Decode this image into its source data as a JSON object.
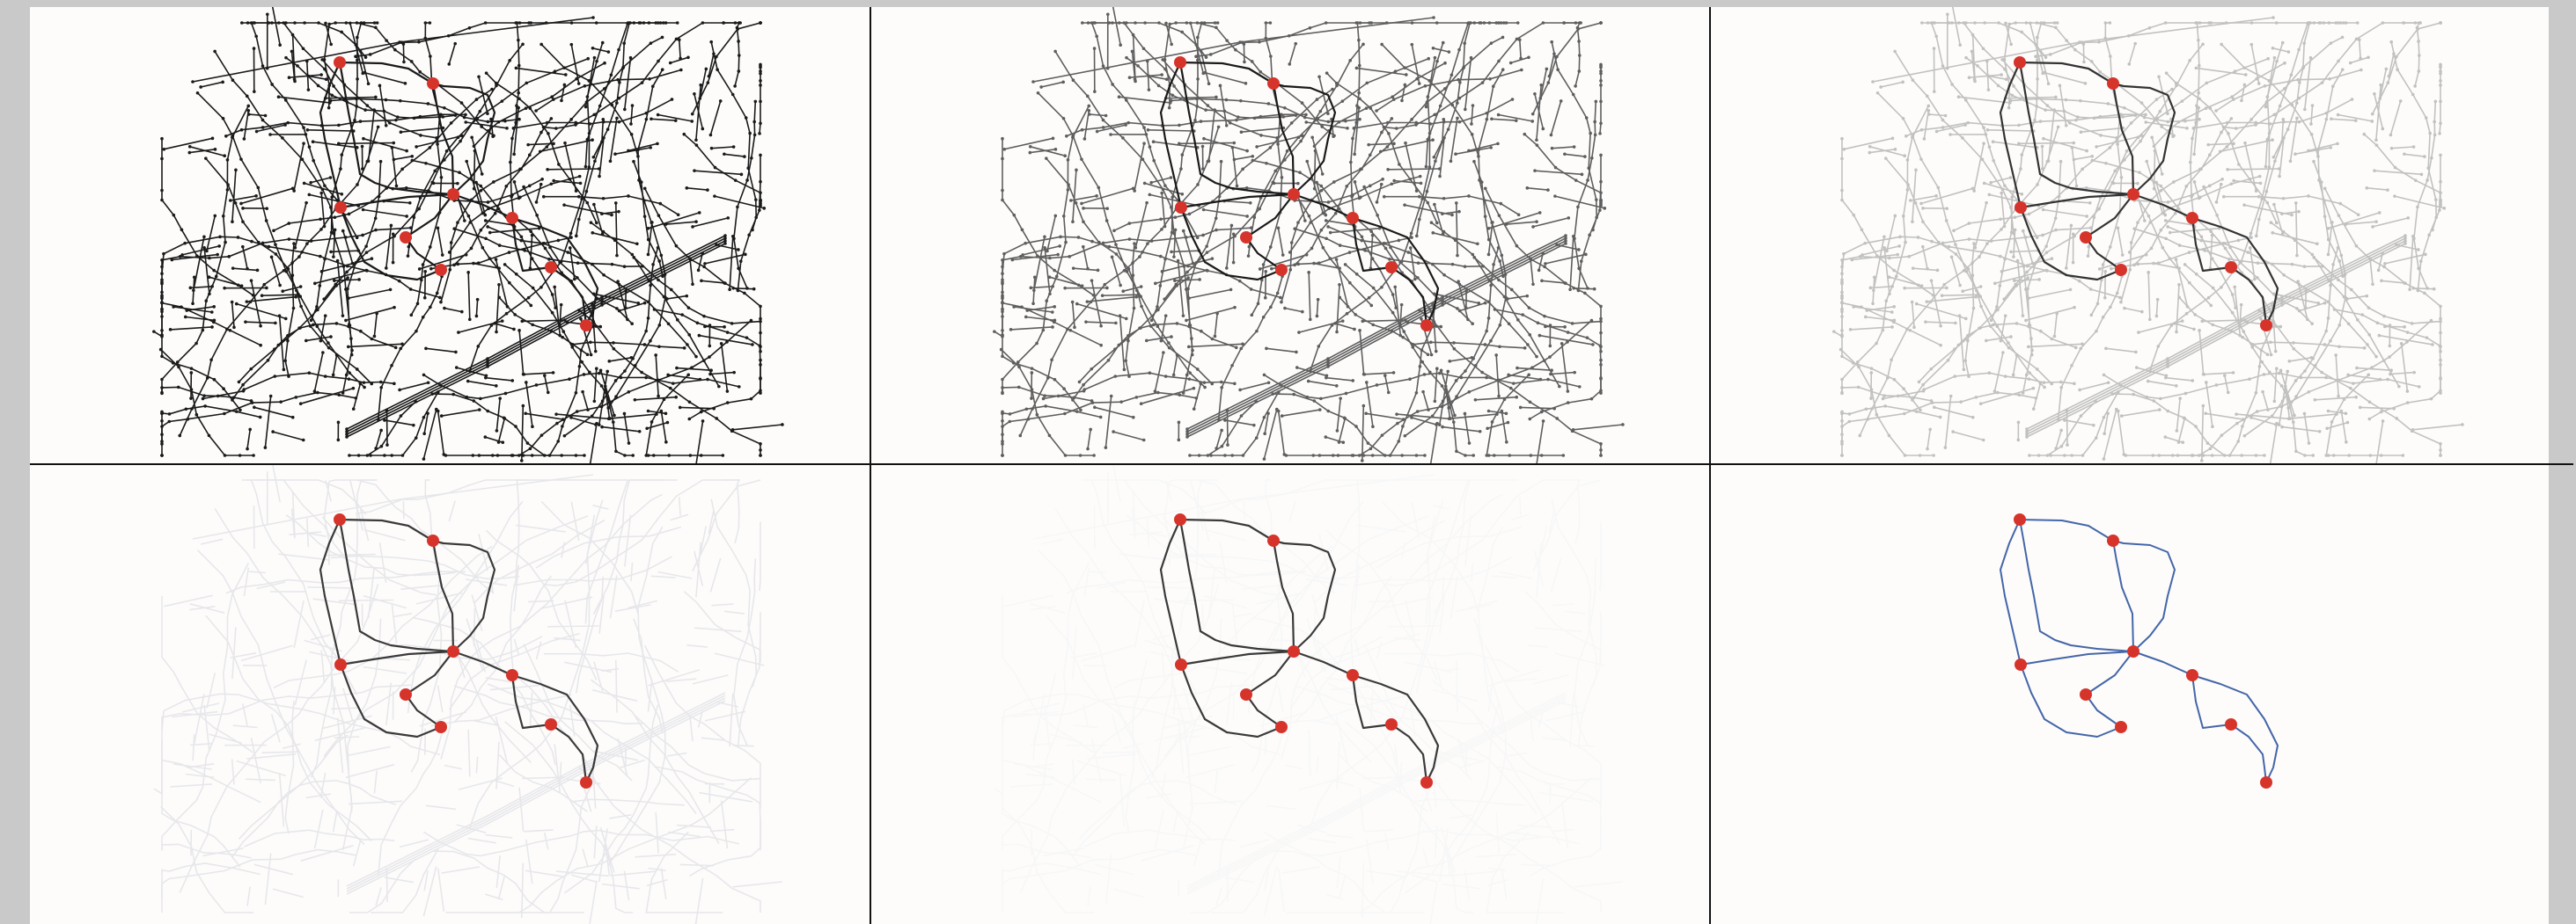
{
  "figure": {
    "layout": {
      "rows": 2,
      "cols": 3
    },
    "panels": [
      {
        "id": "p1",
        "network_opacity": 1.0,
        "halo_opacity": 0.0,
        "network_color": "#1a1a1a",
        "route_color": "#1a1a1a",
        "show_nodes": true
      },
      {
        "id": "p2",
        "network_opacity": 0.78,
        "halo_opacity": 0.0,
        "network_color": "#333333",
        "route_color": "#1a1a1a",
        "show_nodes": true
      },
      {
        "id": "p3",
        "network_opacity": 0.45,
        "halo_opacity": 0.0,
        "network_color": "#7a7a7a",
        "route_color": "#333333",
        "show_nodes": true
      },
      {
        "id": "p4",
        "network_opacity": 0.22,
        "halo_opacity": 0.0,
        "network_color": "#9ea0b4",
        "route_color": "#3a3a3a",
        "show_nodes": false
      },
      {
        "id": "p5",
        "network_opacity": 0.07,
        "halo_opacity": 0.05,
        "network_color": "#b8bacb",
        "route_color": "#3a3a3a",
        "show_nodes": false
      },
      {
        "id": "p6",
        "network_opacity": 0.0,
        "halo_opacity": 0.0,
        "network_color": "#b8bacb",
        "route_color": "#4466a8",
        "show_nodes": false
      }
    ],
    "colors": {
      "panel_background": "#fdfcfb",
      "frame": "#c9c9c9",
      "divider": "#111111",
      "terminal": "#d6342b"
    }
  }
}
